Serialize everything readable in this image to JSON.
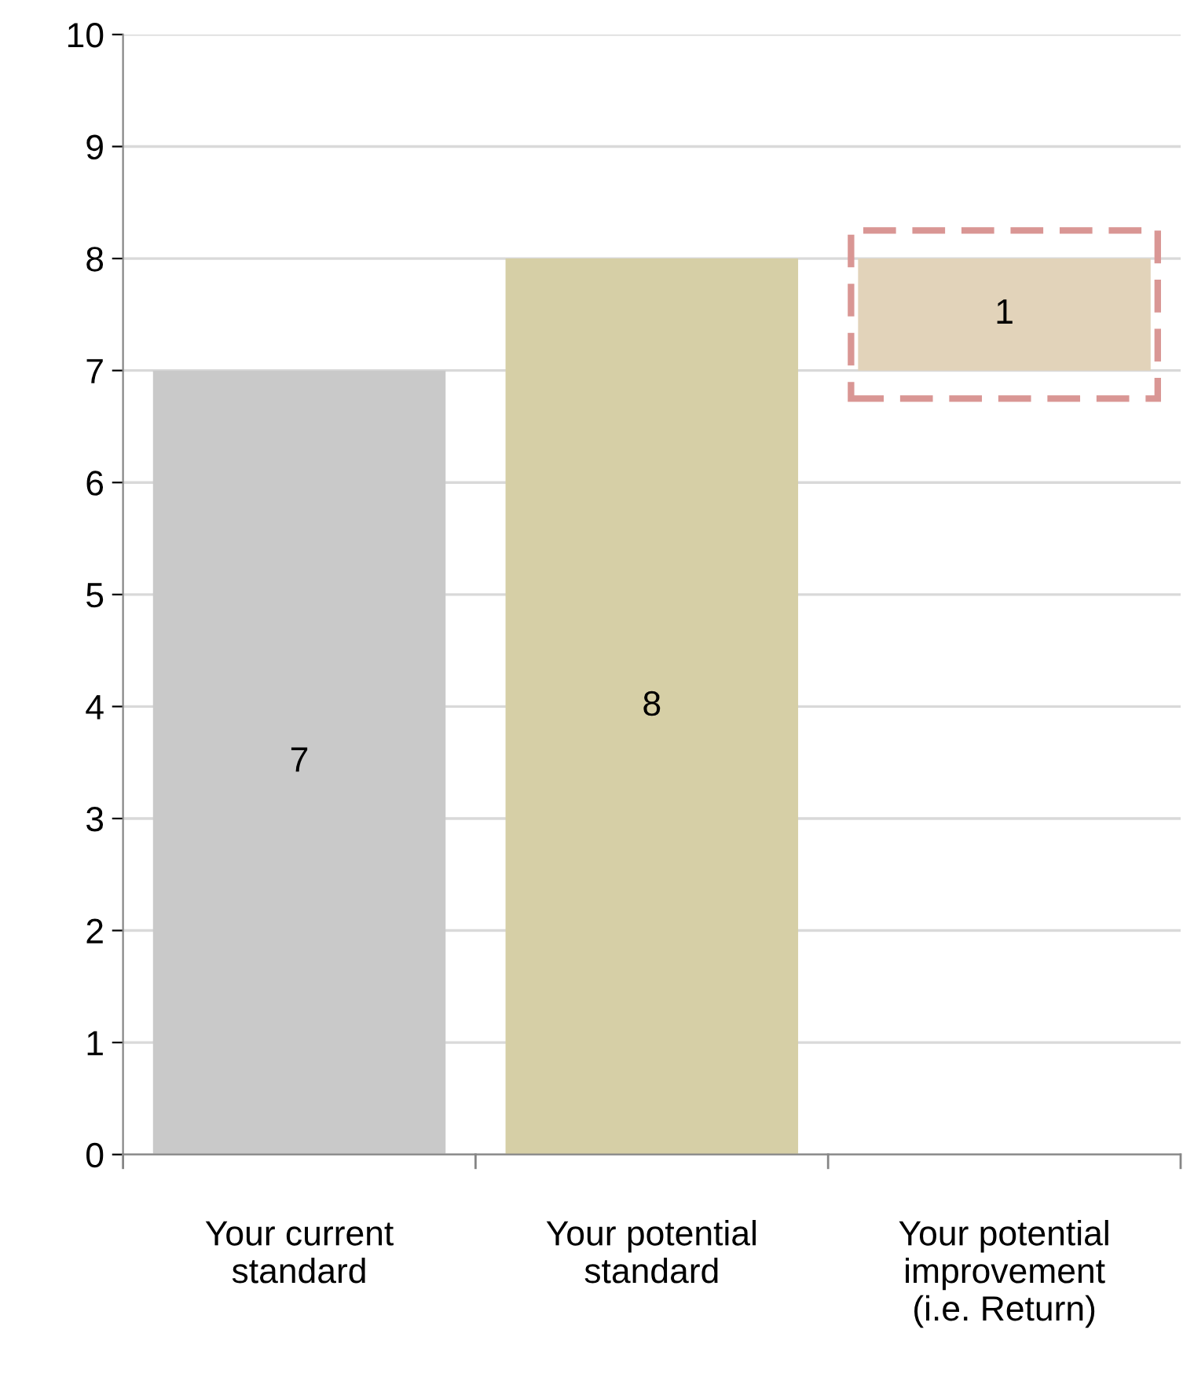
{
  "chart_data": {
    "type": "bar",
    "categories": [
      "Your current\nstandard",
      "Your potential\nstandard",
      "Your potential\nimprovement\n(i.e. Return)"
    ],
    "values": [
      7,
      8,
      1
    ],
    "base": [
      0,
      0,
      7
    ],
    "colors": [
      "#c9c9c9",
      "#d6cfa6",
      "#e2d3ba"
    ],
    "data_labels": true,
    "ylim": [
      0,
      10
    ],
    "yticks": [
      0,
      1,
      2,
      3,
      4,
      5,
      6,
      7,
      8,
      9,
      10
    ],
    "grid": "y"
  }
}
